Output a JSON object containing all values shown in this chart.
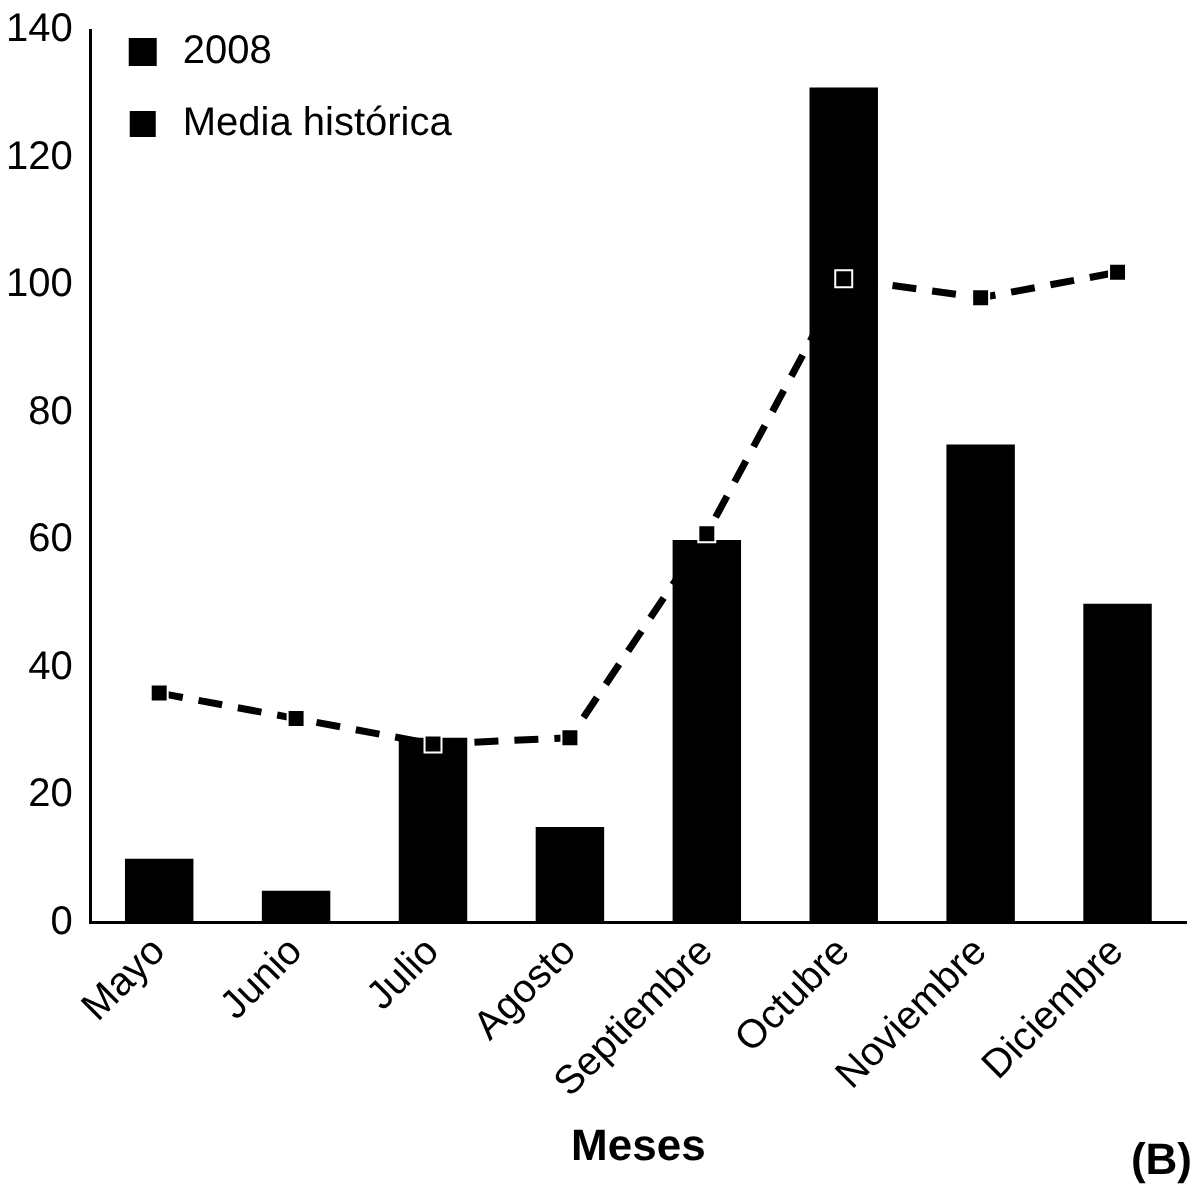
{
  "chart_data": {
    "type": "bar",
    "xlabel": "Meses",
    "categories": [
      "Mayo",
      "Junio",
      "Julio",
      "Agosto",
      "Septiembre",
      "Octubre",
      "Noviembre",
      "Diciembre"
    ],
    "series": [
      {
        "name": "2008",
        "color": "#000000",
        "values": [
          10,
          5,
          29,
          15,
          60,
          131,
          75,
          50
        ]
      },
      {
        "name": "Media histórica",
        "type": "line",
        "color": "#000000",
        "values": [
          36,
          32,
          28,
          29,
          61,
          101,
          98,
          102
        ],
        "marker": "square",
        "line_style": "dashed"
      }
    ],
    "ylim": [
      0,
      140
    ],
    "yticks": [
      0,
      20,
      40,
      60,
      80,
      100,
      120,
      140
    ],
    "grid": false,
    "legend": "top left",
    "annotations": [
      "(B)"
    ]
  }
}
